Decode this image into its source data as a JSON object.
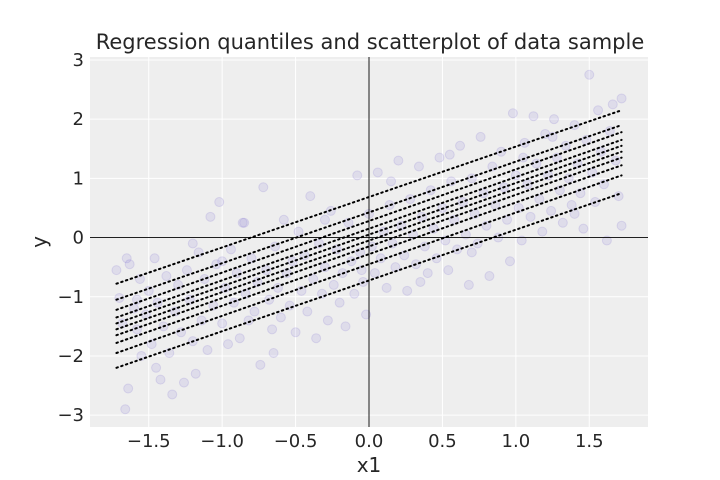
{
  "chart_data": {
    "type": "scatter",
    "title": "Regression quantiles and scatterplot of data sample",
    "xlabel": "x1",
    "ylabel": "y",
    "xlim": [
      -1.9,
      1.9
    ],
    "ylim": [
      -3.2,
      3.05
    ],
    "xticks": [
      -1.5,
      -1.0,
      -0.5,
      0.0,
      0.5,
      1.0,
      1.5
    ],
    "xtick_labels": [
      "−1.5",
      "−1.0",
      "−0.5",
      "0.0",
      "0.5",
      "1.0",
      "1.5"
    ],
    "yticks": [
      -3,
      -2,
      -1,
      0,
      1,
      2,
      3
    ],
    "ytick_labels": [
      "−3",
      "−2",
      "−1",
      "0",
      "1",
      "2",
      "3"
    ],
    "grid": true,
    "reference_lines": {
      "x": 0,
      "y": 0
    },
    "scatter": {
      "name": "data sample",
      "color": "#6a5acd",
      "alpha": 0.12,
      "points": [
        [
          -1.72,
          -0.55
        ],
        [
          -1.7,
          -1.02
        ],
        [
          -1.68,
          -1.45
        ],
        [
          -1.66,
          -2.9
        ],
        [
          -1.64,
          -2.55
        ],
        [
          -1.63,
          -0.45
        ],
        [
          -1.6,
          -1.2
        ],
        [
          -1.58,
          -1.55
        ],
        [
          -1.56,
          -0.7
        ],
        [
          -1.55,
          -2.0
        ],
        [
          -1.52,
          -1.3
        ],
        [
          -1.5,
          -0.9
        ],
        [
          -1.48,
          -1.8
        ],
        [
          -1.46,
          -0.35
        ],
        [
          -1.44,
          -1.1
        ],
        [
          -1.42,
          -2.4
        ],
        [
          -1.4,
          -1.5
        ],
        [
          -1.38,
          -0.65
        ],
        [
          -1.36,
          -1.95
        ],
        [
          -1.34,
          -2.65
        ],
        [
          -1.32,
          -1.25
        ],
        [
          -1.3,
          -0.8
        ],
        [
          -1.28,
          -1.6
        ],
        [
          -1.26,
          -2.45
        ],
        [
          -1.24,
          -0.55
        ],
        [
          -1.22,
          -1.05
        ],
        [
          -1.2,
          -1.75
        ],
        [
          -1.18,
          -2.3
        ],
        [
          -1.16,
          -0.25
        ],
        [
          -1.14,
          -1.4
        ],
        [
          -1.12,
          -0.7
        ],
        [
          -1.1,
          -1.9
        ],
        [
          -1.08,
          0.35
        ],
        [
          -1.06,
          -1.15
        ],
        [
          -1.04,
          -0.45
        ],
        [
          -1.02,
          0.6
        ],
        [
          -1.0,
          -1.45
        ],
        [
          -0.98,
          -0.85
        ],
        [
          -0.96,
          -1.8
        ],
        [
          -0.94,
          -0.2
        ],
        [
          -0.92,
          -1.1
        ],
        [
          -0.9,
          -0.6
        ],
        [
          -0.88,
          -1.7
        ],
        [
          -0.86,
          0.25
        ],
        [
          -0.84,
          -0.95
        ],
        [
          -0.82,
          -1.4
        ],
        [
          -0.8,
          -0.35
        ],
        [
          -0.78,
          -1.25
        ],
        [
          -0.76,
          -0.75
        ],
        [
          -0.74,
          -2.15
        ],
        [
          -0.72,
          0.85
        ],
        [
          -0.7,
          -0.55
        ],
        [
          -0.68,
          -1.05
        ],
        [
          -0.66,
          -1.55
        ],
        [
          -0.64,
          -0.15
        ],
        [
          -0.62,
          -0.85
        ],
        [
          -0.6,
          -1.35
        ],
        [
          -0.58,
          0.3
        ],
        [
          -0.56,
          -0.6
        ],
        [
          -0.54,
          -1.15
        ],
        [
          -0.52,
          -0.4
        ],
        [
          -0.5,
          -1.6
        ],
        [
          -0.48,
          0.1
        ],
        [
          -0.46,
          -0.9
        ],
        [
          -0.44,
          -0.3
        ],
        [
          -0.42,
          -1.25
        ],
        [
          -0.4,
          0.7
        ],
        [
          -0.38,
          -0.7
        ],
        [
          -0.36,
          -1.7
        ],
        [
          -0.34,
          -0.1
        ],
        [
          -0.32,
          -0.95
        ],
        [
          -0.3,
          -0.5
        ],
        [
          -0.28,
          -1.4
        ],
        [
          -0.26,
          0.45
        ],
        [
          -0.24,
          -0.8
        ],
        [
          -0.22,
          -0.2
        ],
        [
          -0.2,
          -1.1
        ],
        [
          -0.18,
          -0.6
        ],
        [
          -0.16,
          -1.5
        ],
        [
          -0.14,
          0.25
        ],
        [
          -0.12,
          -0.4
        ],
        [
          -0.1,
          -0.95
        ],
        [
          -0.08,
          1.05
        ],
        [
          -0.06,
          -0.25
        ],
        [
          -0.04,
          -0.75
        ],
        [
          -0.02,
          -1.3
        ],
        [
          0.0,
          0.4
        ],
        [
          0.02,
          -0.15
        ],
        [
          0.04,
          -0.6
        ],
        [
          0.06,
          1.1
        ],
        [
          0.08,
          -0.35
        ],
        [
          0.1,
          0.1
        ],
        [
          0.12,
          -0.85
        ],
        [
          0.14,
          0.55
        ],
        [
          0.16,
          -0.1
        ],
        [
          0.18,
          -0.5
        ],
        [
          0.2,
          1.3
        ],
        [
          0.22,
          0.2
        ],
        [
          0.24,
          -0.3
        ],
        [
          0.26,
          -0.9
        ],
        [
          0.28,
          0.65
        ],
        [
          0.3,
          0.05
        ],
        [
          0.32,
          -0.45
        ],
        [
          0.34,
          1.2
        ],
        [
          0.36,
          0.35
        ],
        [
          0.38,
          -0.15
        ],
        [
          0.4,
          -0.6
        ],
        [
          0.42,
          0.8
        ],
        [
          0.44,
          0.15
        ],
        [
          0.46,
          -0.35
        ],
        [
          0.48,
          1.35
        ],
        [
          0.5,
          0.5
        ],
        [
          0.52,
          -0.05
        ],
        [
          0.54,
          -0.55
        ],
        [
          0.56,
          0.95
        ],
        [
          0.58,
          0.3
        ],
        [
          0.6,
          -0.2
        ],
        [
          0.62,
          1.55
        ],
        [
          0.64,
          0.6
        ],
        [
          0.66,
          0.05
        ],
        [
          0.68,
          -0.8
        ],
        [
          0.7,
          1.0
        ],
        [
          0.72,
          0.4
        ],
        [
          0.74,
          -0.1
        ],
        [
          0.76,
          1.7
        ],
        [
          0.78,
          0.75
        ],
        [
          0.8,
          0.2
        ],
        [
          0.82,
          -0.65
        ],
        [
          0.84,
          1.2
        ],
        [
          0.86,
          0.55
        ],
        [
          0.88,
          0.0
        ],
        [
          0.9,
          1.45
        ],
        [
          0.92,
          0.85
        ],
        [
          0.94,
          0.3
        ],
        [
          0.96,
          -0.4
        ],
        [
          0.98,
          2.1
        ],
        [
          1.0,
          1.05
        ],
        [
          1.02,
          0.5
        ],
        [
          1.04,
          -0.05
        ],
        [
          1.06,
          1.6
        ],
        [
          1.08,
          0.9
        ],
        [
          1.1,
          0.35
        ],
        [
          1.12,
          2.05
        ],
        [
          1.14,
          1.25
        ],
        [
          1.16,
          0.65
        ],
        [
          1.18,
          0.1
        ],
        [
          1.2,
          1.75
        ],
        [
          1.22,
          1.05
        ],
        [
          1.24,
          0.45
        ],
        [
          1.26,
          2.0
        ],
        [
          1.28,
          1.35
        ],
        [
          1.3,
          0.8
        ],
        [
          1.32,
          0.25
        ],
        [
          1.34,
          1.55
        ],
        [
          1.36,
          1.0
        ],
        [
          1.38,
          0.55
        ],
        [
          1.4,
          1.9
        ],
        [
          1.42,
          1.25
        ],
        [
          1.44,
          0.75
        ],
        [
          1.46,
          0.15
        ],
        [
          1.48,
          1.65
        ],
        [
          1.5,
          2.75
        ],
        [
          1.52,
          1.1
        ],
        [
          1.54,
          0.6
        ],
        [
          1.56,
          2.15
        ],
        [
          1.58,
          1.45
        ],
        [
          1.6,
          0.9
        ],
        [
          1.62,
          -0.05
        ],
        [
          1.64,
          1.8
        ],
        [
          1.66,
          2.25
        ],
        [
          1.68,
          1.3
        ],
        [
          1.7,
          0.7
        ],
        [
          1.72,
          2.35
        ],
        [
          1.72,
          0.2
        ],
        [
          -1.65,
          -0.35
        ],
        [
          -1.2,
          -0.1
        ],
        [
          -0.85,
          0.25
        ],
        [
          0.15,
          0.95
        ],
        [
          0.55,
          1.4
        ],
        [
          1.25,
          1.7
        ],
        [
          -0.05,
          -0.55
        ],
        [
          -0.65,
          -1.95
        ],
        [
          0.35,
          -0.75
        ],
        [
          -1.45,
          -2.2
        ],
        [
          1.05,
          1.35
        ],
        [
          0.7,
          -0.25
        ],
        [
          -0.3,
          0.3
        ],
        [
          -1.0,
          -0.4
        ],
        [
          1.4,
          0.4
        ],
        [
          -1.58,
          -1.05
        ]
      ]
    },
    "quantile_lines": {
      "color": "#000000",
      "style": "dotted",
      "x_range": [
        -1.72,
        1.72
      ],
      "lines": [
        {
          "q": 0.05,
          "y_start": -2.2,
          "y_end": 0.75
        },
        {
          "q": 0.15,
          "y_start": -1.95,
          "y_end": 1.05
        },
        {
          "q": 0.25,
          "y_start": -1.78,
          "y_end": 1.22
        },
        {
          "q": 0.35,
          "y_start": -1.65,
          "y_end": 1.35
        },
        {
          "q": 0.45,
          "y_start": -1.55,
          "y_end": 1.45
        },
        {
          "q": 0.55,
          "y_start": -1.45,
          "y_end": 1.55
        },
        {
          "q": 0.65,
          "y_start": -1.35,
          "y_end": 1.65
        },
        {
          "q": 0.75,
          "y_start": -1.22,
          "y_end": 1.78
        },
        {
          "q": 0.85,
          "y_start": -1.05,
          "y_end": 1.9
        },
        {
          "q": 0.95,
          "y_start": -0.78,
          "y_end": 2.15
        }
      ]
    }
  }
}
